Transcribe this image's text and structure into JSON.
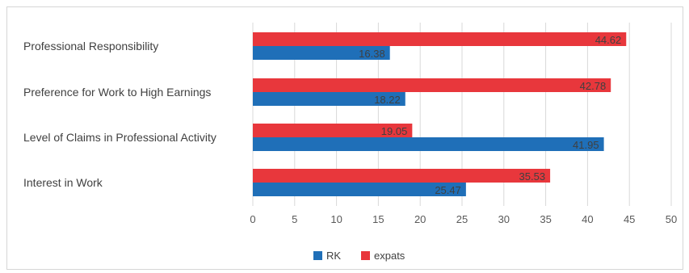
{
  "chart_data": {
    "type": "bar",
    "orientation": "horizontal",
    "categories": [
      "Professional Responsibility",
      "Preference for Work to High Earnings",
      "Level of Claims in Professional Activity",
      "Interest in Work"
    ],
    "series": [
      {
        "name": "expats",
        "color": "#e8373c",
        "values": [
          44.62,
          42.78,
          19.05,
          35.53
        ]
      },
      {
        "name": "RK",
        "color": "#1f6fb8",
        "values": [
          16.38,
          18.22,
          41.95,
          25.47
        ]
      }
    ],
    "xlim": [
      0,
      50
    ],
    "xticks": [
      "0",
      "5",
      "10",
      "15",
      "20",
      "25",
      "30",
      "35",
      "40",
      "45",
      "50"
    ],
    "grid": "vertical",
    "legend": {
      "position": "bottom",
      "order": [
        "RK",
        "expats"
      ]
    }
  }
}
